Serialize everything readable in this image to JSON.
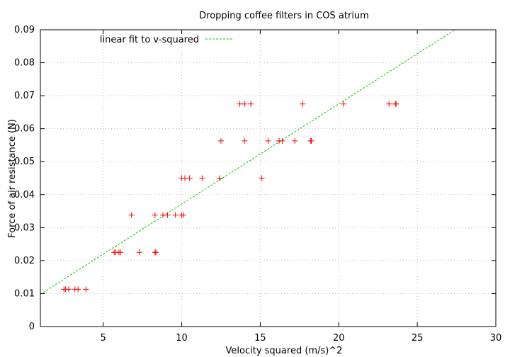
{
  "chart_data": {
    "type": "scatter",
    "title": "Dropping coffee filters in COS atrium",
    "xlabel": "Velocity squared (m/s)^2",
    "ylabel": "Force of air resistance (N)",
    "xlim": [
      1,
      30
    ],
    "ylim": [
      0,
      0.09
    ],
    "xticks": [
      5,
      10,
      15,
      20,
      25,
      30
    ],
    "yticks": [
      0,
      0.01,
      0.02,
      0.03,
      0.04,
      0.05,
      0.06,
      0.07,
      0.08,
      0.09
    ],
    "grid": true,
    "legend_position": "top-left",
    "series": [
      {
        "values": [
          {
            "x": 2.5,
            "y": 0.0113
          },
          {
            "x": 2.6,
            "y": 0.0113
          },
          {
            "x": 2.8,
            "y": 0.0113
          },
          {
            "x": 3.2,
            "y": 0.0113
          },
          {
            "x": 3.4,
            "y": 0.0113
          },
          {
            "x": 3.9,
            "y": 0.0113
          },
          {
            "x": 5.7,
            "y": 0.0225
          },
          {
            "x": 5.8,
            "y": 0.0225
          },
          {
            "x": 6.0,
            "y": 0.0225
          },
          {
            "x": 6.1,
            "y": 0.0225
          },
          {
            "x": 7.3,
            "y": 0.0225
          },
          {
            "x": 8.3,
            "y": 0.0225
          },
          {
            "x": 8.35,
            "y": 0.0225
          },
          {
            "x": 6.8,
            "y": 0.0338
          },
          {
            "x": 8.3,
            "y": 0.0338
          },
          {
            "x": 8.8,
            "y": 0.0338
          },
          {
            "x": 9.1,
            "y": 0.0338
          },
          {
            "x": 9.6,
            "y": 0.0338
          },
          {
            "x": 10.0,
            "y": 0.0338
          },
          {
            "x": 10.1,
            "y": 0.0338
          },
          {
            "x": 10.0,
            "y": 0.045
          },
          {
            "x": 10.2,
            "y": 0.045
          },
          {
            "x": 10.5,
            "y": 0.045
          },
          {
            "x": 11.3,
            "y": 0.045
          },
          {
            "x": 12.4,
            "y": 0.045
          },
          {
            "x": 15.1,
            "y": 0.045
          },
          {
            "x": 12.5,
            "y": 0.0563
          },
          {
            "x": 14.0,
            "y": 0.0563
          },
          {
            "x": 15.5,
            "y": 0.0563
          },
          {
            "x": 16.2,
            "y": 0.0563
          },
          {
            "x": 16.4,
            "y": 0.0563
          },
          {
            "x": 17.2,
            "y": 0.0563
          },
          {
            "x": 18.2,
            "y": 0.0563
          },
          {
            "x": 18.25,
            "y": 0.0563
          },
          {
            "x": 13.7,
            "y": 0.0675
          },
          {
            "x": 14.0,
            "y": 0.0675
          },
          {
            "x": 14.4,
            "y": 0.0675
          },
          {
            "x": 17.7,
            "y": 0.0675
          },
          {
            "x": 20.3,
            "y": 0.0675
          },
          {
            "x": 23.2,
            "y": 0.0675
          },
          {
            "x": 23.6,
            "y": 0.0675
          },
          {
            "x": 23.65,
            "y": 0.0675
          }
        ],
        "color": "#ff0000",
        "marker": "plus"
      },
      {
        "name": "linear fit to v-squared",
        "type": "line",
        "values": [
          {
            "x": 1,
            "y": 0.0098
          },
          {
            "x": 27.4,
            "y": 0.09
          }
        ],
        "color": "#00cc00",
        "style": "dashed"
      }
    ]
  }
}
